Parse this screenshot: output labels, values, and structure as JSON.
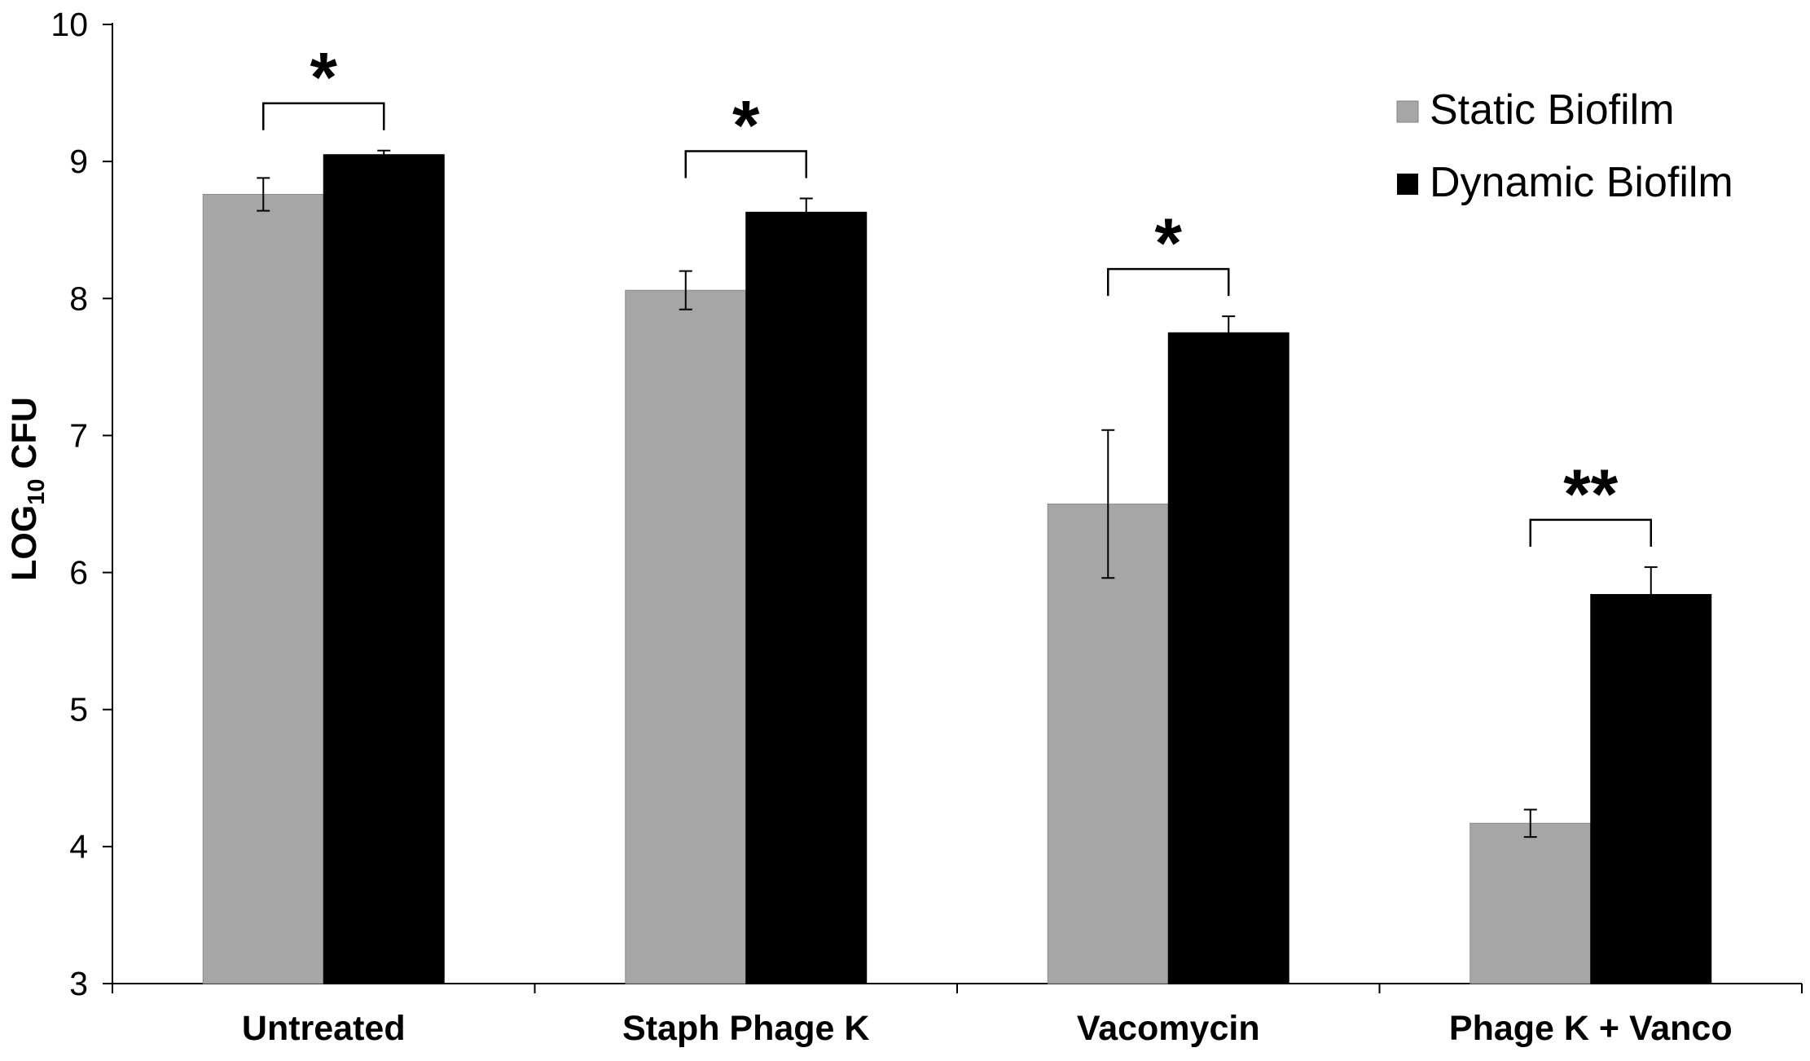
{
  "chart_data": {
    "type": "bar",
    "title": "",
    "xlabel": "",
    "ylabel": "LOG",
    "ylabel_subscript": "10",
    "ylabel_suffix": " CFU",
    "ylim": [
      3,
      10
    ],
    "yticks": [
      3,
      4,
      5,
      6,
      7,
      8,
      9,
      10
    ],
    "grid": false,
    "legend_position": "top-right",
    "categories": [
      "Untreated",
      "Staph Phage K",
      "Vacomycin",
      "Phage K + Vanco"
    ],
    "series": [
      {
        "name": "Static Biofilm",
        "color": "#a6a6a6",
        "values": [
          8.76,
          8.06,
          6.5,
          4.17
        ],
        "errors": [
          0.12,
          0.14,
          0.54,
          0.1
        ]
      },
      {
        "name": "Dynamic Biofilm",
        "color": "#000000",
        "values": [
          9.05,
          8.63,
          7.75,
          5.84
        ],
        "errors": [
          0.03,
          0.1,
          0.12,
          0.2
        ]
      }
    ],
    "significance": [
      {
        "category": "Untreated",
        "label": "*"
      },
      {
        "category": "Staph Phage K",
        "label": "*"
      },
      {
        "category": "Vacomycin",
        "label": "*"
      },
      {
        "category": "Phage K + Vanco",
        "label": "**"
      }
    ]
  }
}
